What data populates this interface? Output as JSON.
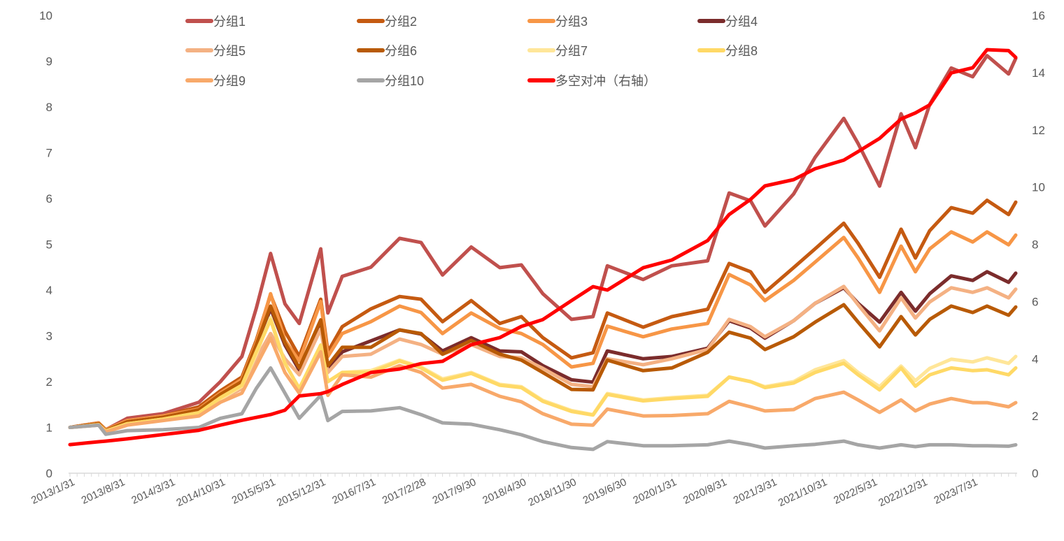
{
  "chart_data": {
    "type": "line",
    "title": "",
    "xlabel": "",
    "ylabel": "",
    "ylim": [
      0,
      10
    ],
    "y2lim": [
      0,
      16
    ],
    "yticks": [
      "0",
      "1",
      "2",
      "3",
      "4",
      "5",
      "6",
      "7",
      "8",
      "9",
      "10"
    ],
    "y2ticks": [
      "0",
      "2",
      "4",
      "6",
      "8",
      "10",
      "12",
      "14",
      "16"
    ],
    "x_start": "2013/1/31",
    "x_frequency": "monthly",
    "x_total_months": 132,
    "xtick_labels": [
      "2013/1/31",
      "2013/8/31",
      "2014/3/31",
      "2014/10/31",
      "2015/5/31",
      "2015/12/31",
      "2016/7/31",
      "2017/2/28",
      "2017/9/30",
      "2018/4/30",
      "2018/11/30",
      "2019/6/30",
      "2020/1/31",
      "2020/8/31",
      "2021/3/31",
      "2021/10/31",
      "2022/5/31",
      "2022/12/31",
      "2023/7/31"
    ],
    "xtick_months": [
      0,
      7,
      14,
      21,
      28,
      35,
      42,
      49,
      56,
      63,
      70,
      77,
      84,
      91,
      98,
      105,
      112,
      119,
      126
    ],
    "x_months": [
      0,
      4,
      5,
      8,
      13,
      18,
      21,
      24,
      26,
      28,
      30,
      32,
      35,
      36,
      38,
      42,
      46,
      49,
      52,
      56,
      60,
      63,
      66,
      70,
      73,
      75,
      80,
      84,
      89,
      92,
      95,
      97,
      101,
      104,
      108,
      110,
      113,
      116,
      118,
      120,
      123,
      126,
      128,
      131,
      132
    ],
    "grid": false,
    "legend_position": "top",
    "series": [
      {
        "name": "分组1",
        "color": "#C0504D",
        "axis": "left",
        "values": [
          1.0,
          1.1,
          0.95,
          1.2,
          1.3,
          1.55,
          2.0,
          2.55,
          3.6,
          4.8,
          3.7,
          3.27,
          4.9,
          3.5,
          4.3,
          4.5,
          5.13,
          5.04,
          4.33,
          4.94,
          4.49,
          4.55,
          3.92,
          3.36,
          3.42,
          4.53,
          4.23,
          4.53,
          4.64,
          6.12,
          5.95,
          5.4,
          6.1,
          6.9,
          7.75,
          7.2,
          6.27,
          7.85,
          7.11,
          8.06,
          8.85,
          8.66,
          9.12,
          8.72,
          9.06
        ]
      },
      {
        "name": "分组2",
        "color": "#C55A11",
        "axis": "left",
        "values": [
          1,
          1.1,
          0.95,
          1.15,
          1.25,
          1.45,
          1.8,
          2.1,
          2.9,
          3.9,
          3.1,
          2.55,
          3.8,
          2.65,
          3.2,
          3.59,
          3.86,
          3.8,
          3.31,
          3.77,
          3.27,
          3.42,
          2.96,
          2.52,
          2.63,
          3.5,
          3.19,
          3.42,
          3.58,
          4.58,
          4.4,
          3.95,
          4.49,
          4.9,
          5.46,
          5.02,
          4.28,
          5.33,
          4.7,
          5.3,
          5.8,
          5.68,
          5.96,
          5.65,
          5.92
        ]
      },
      {
        "name": "分组3",
        "color": "#F79646",
        "axis": "left",
        "values": [
          1,
          1.1,
          0.95,
          1.15,
          1.25,
          1.4,
          1.75,
          2.05,
          2.85,
          3.92,
          2.9,
          2.45,
          3.75,
          2.55,
          3.05,
          3.31,
          3.65,
          3.51,
          3.05,
          3.5,
          3.16,
          3.05,
          2.81,
          2.32,
          2.4,
          3.21,
          2.98,
          3.15,
          3.27,
          4.34,
          4.11,
          3.77,
          4.21,
          4.61,
          5.15,
          4.7,
          3.95,
          4.96,
          4.4,
          4.9,
          5.27,
          5.05,
          5.27,
          4.99,
          5.2
        ]
      },
      {
        "name": "分组4",
        "color": "#7B2C2C",
        "axis": "left",
        "values": [
          1,
          1.08,
          0.93,
          1.12,
          1.22,
          1.38,
          1.7,
          2.0,
          2.75,
          3.6,
          2.8,
          2.25,
          3.3,
          2.25,
          2.65,
          2.89,
          3.13,
          3.04,
          2.67,
          2.96,
          2.67,
          2.65,
          2.35,
          2.04,
          1.99,
          2.67,
          2.5,
          2.55,
          2.73,
          3.33,
          3.17,
          2.95,
          3.33,
          3.71,
          4.05,
          3.71,
          3.3,
          3.95,
          3.54,
          3.92,
          4.31,
          4.21,
          4.4,
          4.17,
          4.37
        ]
      },
      {
        "name": "分组5",
        "color": "#F4B183",
        "axis": "left",
        "values": [
          1,
          1.05,
          0.92,
          1.08,
          1.18,
          1.3,
          1.6,
          1.85,
          2.5,
          3.05,
          2.5,
          2.15,
          3.15,
          2.2,
          2.55,
          2.6,
          2.93,
          2.81,
          2.6,
          2.81,
          2.55,
          2.52,
          2.29,
          1.94,
          1.89,
          2.5,
          2.37,
          2.5,
          2.7,
          3.36,
          3.2,
          2.98,
          3.33,
          3.71,
          4.08,
          3.68,
          3.11,
          3.83,
          3.39,
          3.74,
          4.05,
          3.95,
          4.05,
          3.83,
          4.02
        ]
      },
      {
        "name": "分组6",
        "color": "#B85A05",
        "axis": "left",
        "values": [
          1,
          1.08,
          0.93,
          1.12,
          1.22,
          1.38,
          1.72,
          2.0,
          2.8,
          3.65,
          2.85,
          2.3,
          3.35,
          2.35,
          2.75,
          2.75,
          3.13,
          3.05,
          2.6,
          2.9,
          2.6,
          2.47,
          2.2,
          1.83,
          1.82,
          2.47,
          2.24,
          2.3,
          2.64,
          3.08,
          2.95,
          2.7,
          2.98,
          3.3,
          3.68,
          3.3,
          2.76,
          3.42,
          3.02,
          3.36,
          3.65,
          3.51,
          3.65,
          3.45,
          3.63
        ]
      },
      {
        "name": "分组7",
        "color": "#FFE699",
        "axis": "left",
        "values": [
          1,
          1.06,
          0.92,
          1.08,
          1.18,
          1.32,
          1.62,
          1.9,
          2.6,
          3.4,
          2.4,
          1.85,
          2.75,
          2.0,
          2.2,
          2.24,
          2.47,
          2.32,
          2.06,
          2.2,
          1.94,
          1.89,
          1.59,
          1.37,
          1.28,
          1.74,
          1.6,
          1.65,
          1.7,
          2.1,
          2.0,
          1.89,
          2.0,
          2.26,
          2.46,
          2.2,
          1.89,
          2.34,
          2.02,
          2.29,
          2.49,
          2.43,
          2.52,
          2.4,
          2.55
        ]
      },
      {
        "name": "分组8",
        "color": "#FFD966",
        "axis": "left",
        "values": [
          1,
          1.06,
          0.92,
          1.08,
          1.18,
          1.32,
          1.65,
          1.92,
          2.65,
          3.35,
          2.4,
          1.85,
          2.8,
          2.0,
          2.2,
          2.2,
          2.45,
          2.3,
          2.03,
          2.18,
          1.92,
          1.87,
          1.57,
          1.35,
          1.27,
          1.72,
          1.58,
          1.63,
          1.68,
          2.1,
          2.0,
          1.87,
          1.97,
          2.2,
          2.4,
          2.15,
          1.82,
          2.3,
          1.9,
          2.15,
          2.3,
          2.24,
          2.26,
          2.15,
          2.3
        ]
      },
      {
        "name": "分组9",
        "color": "#F8A96A",
        "axis": "left",
        "values": [
          1,
          1.05,
          0.9,
          1.05,
          1.15,
          1.25,
          1.55,
          1.75,
          2.35,
          2.95,
          2.2,
          1.75,
          2.65,
          1.7,
          2.15,
          2.1,
          2.35,
          2.2,
          1.86,
          1.94,
          1.68,
          1.56,
          1.3,
          1.07,
          1.05,
          1.4,
          1.25,
          1.26,
          1.3,
          1.57,
          1.45,
          1.36,
          1.39,
          1.63,
          1.77,
          1.6,
          1.33,
          1.6,
          1.36,
          1.51,
          1.63,
          1.54,
          1.54,
          1.45,
          1.54
        ]
      },
      {
        "name": "分组10",
        "color": "#A5A5A5",
        "axis": "left",
        "values": [
          1,
          1.05,
          0.85,
          0.93,
          0.95,
          1.0,
          1.2,
          1.3,
          1.85,
          2.3,
          1.75,
          1.2,
          1.7,
          1.15,
          1.35,
          1.36,
          1.43,
          1.28,
          1.1,
          1.07,
          0.95,
          0.84,
          0.69,
          0.56,
          0.52,
          0.69,
          0.6,
          0.6,
          0.62,
          0.7,
          0.62,
          0.55,
          0.6,
          0.63,
          0.7,
          0.62,
          0.55,
          0.62,
          0.58,
          0.62,
          0.62,
          0.6,
          0.6,
          0.59,
          0.62
        ]
      },
      {
        "name": "多空对冲（右轴）",
        "color": "#FF0000",
        "axis": "right",
        "values": [
          1.0,
          1.1,
          1.12,
          1.2,
          1.35,
          1.5,
          1.68,
          1.85,
          1.95,
          2.05,
          2.2,
          2.7,
          2.78,
          2.85,
          3.1,
          3.52,
          3.64,
          3.83,
          3.91,
          4.49,
          4.74,
          5.13,
          5.37,
          6.03,
          6.52,
          6.4,
          7.18,
          7.45,
          8.13,
          9.04,
          9.57,
          10.04,
          10.26,
          10.64,
          10.94,
          11.24,
          11.7,
          12.38,
          12.59,
          12.87,
          13.99,
          14.17,
          14.8,
          14.77,
          14.53
        ]
      }
    ]
  }
}
